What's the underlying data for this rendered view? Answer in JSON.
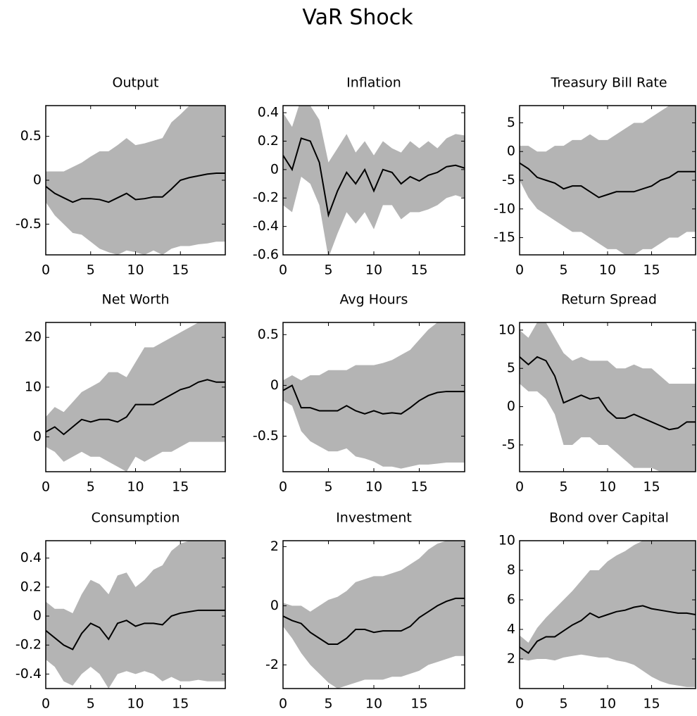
{
  "title": "VaR Shock",
  "chart_data": [
    {
      "type": "line",
      "title": "Output",
      "x": [
        0,
        1,
        2,
        3,
        4,
        5,
        6,
        7,
        8,
        9,
        10,
        11,
        12,
        13,
        14,
        15,
        16,
        17,
        18,
        19,
        20
      ],
      "values": [
        -0.07,
        -0.15,
        -0.2,
        -0.25,
        -0.21,
        -0.21,
        -0.22,
        -0.25,
        -0.2,
        -0.15,
        -0.22,
        -0.21,
        -0.19,
        -0.19,
        -0.1,
        0.0,
        0.03,
        0.05,
        0.07,
        0.08,
        0.08
      ],
      "band_upper": [
        0.1,
        0.1,
        0.1,
        0.15,
        0.2,
        0.27,
        0.33,
        0.33,
        0.4,
        0.48,
        0.4,
        0.42,
        0.45,
        0.48,
        0.66,
        0.75,
        0.85,
        0.85,
        0.85,
        0.85,
        0.85
      ],
      "band_lower": [
        -0.25,
        -0.4,
        -0.5,
        -0.6,
        -0.62,
        -0.7,
        -0.78,
        -0.82,
        -0.85,
        -0.8,
        -0.82,
        -0.85,
        -0.8,
        -0.85,
        -0.78,
        -0.75,
        -0.75,
        -0.73,
        -0.72,
        -0.7,
        -0.7
      ],
      "color": "#000000",
      "band_color": "#b4b4b4",
      "xlim": [
        0,
        20
      ],
      "xticks": [
        0,
        5,
        10,
        15
      ],
      "ylim": [
        -0.85,
        0.85
      ],
      "yticks": [
        -0.5,
        0,
        0.5
      ]
    },
    {
      "type": "line",
      "title": "Inflation",
      "x": [
        0,
        1,
        2,
        3,
        4,
        5,
        6,
        7,
        8,
        9,
        10,
        11,
        12,
        13,
        14,
        15,
        16,
        17,
        18,
        19,
        20
      ],
      "values": [
        0.1,
        0.0,
        0.22,
        0.2,
        0.05,
        -0.32,
        -0.15,
        -0.02,
        -0.1,
        0.0,
        -0.15,
        0.0,
        -0.02,
        -0.1,
        -0.05,
        -0.08,
        -0.04,
        -0.02,
        0.02,
        0.03,
        0.01
      ],
      "band_upper": [
        0.4,
        0.3,
        0.5,
        0.45,
        0.35,
        0.05,
        0.15,
        0.25,
        0.12,
        0.2,
        0.1,
        0.2,
        0.15,
        0.12,
        0.2,
        0.15,
        0.2,
        0.15,
        0.22,
        0.25,
        0.24
      ],
      "band_lower": [
        -0.25,
        -0.3,
        -0.05,
        -0.1,
        -0.25,
        -0.62,
        -0.45,
        -0.3,
        -0.38,
        -0.3,
        -0.42,
        -0.25,
        -0.25,
        -0.35,
        -0.3,
        -0.3,
        -0.28,
        -0.25,
        -0.2,
        -0.18,
        -0.2
      ],
      "color": "#000000",
      "band_color": "#b4b4b4",
      "xlim": [
        0,
        20
      ],
      "xticks": [
        0,
        5,
        10,
        15
      ],
      "ylim": [
        -0.6,
        0.45
      ],
      "yticks": [
        -0.6,
        -0.4,
        -0.2,
        0,
        0.2,
        0.4
      ]
    },
    {
      "type": "line",
      "title": "Treasury Bill Rate",
      "x": [
        0,
        1,
        2,
        3,
        4,
        5,
        6,
        7,
        8,
        9,
        10,
        11,
        12,
        13,
        14,
        15,
        16,
        17,
        18,
        19,
        20
      ],
      "values": [
        -2,
        -3,
        -4.5,
        -5,
        -5.5,
        -6.5,
        -6,
        -6,
        -7,
        -8,
        -7.5,
        -7,
        -7,
        -7,
        -6.5,
        -6,
        -5,
        -4.5,
        -3.5,
        -3.5,
        -3.5
      ],
      "band_upper": [
        1,
        1,
        0,
        0,
        1,
        1,
        2,
        2,
        3,
        2,
        2,
        3,
        4,
        5,
        5,
        6,
        7,
        8,
        8,
        8,
        8
      ],
      "band_lower": [
        -5,
        -8,
        -10,
        -11,
        -12,
        -13,
        -14,
        -14,
        -15,
        -16,
        -17,
        -17,
        -18,
        -18,
        -17,
        -17,
        -16,
        -15,
        -15,
        -14,
        -14
      ],
      "color": "#000000",
      "band_color": "#b4b4b4",
      "xlim": [
        0,
        20
      ],
      "xticks": [
        0,
        5,
        10,
        15
      ],
      "ylim": [
        -18,
        8
      ],
      "yticks": [
        -15,
        -10,
        -5,
        0,
        5
      ]
    },
    {
      "type": "line",
      "title": "Net Worth",
      "x": [
        0,
        1,
        2,
        3,
        4,
        5,
        6,
        7,
        8,
        9,
        10,
        11,
        12,
        13,
        14,
        15,
        16,
        17,
        18,
        19,
        20
      ],
      "values": [
        1,
        2,
        0.5,
        2,
        3.5,
        3,
        3.5,
        3.5,
        3,
        4,
        6.5,
        6.5,
        6.5,
        7.5,
        8.5,
        9.5,
        10,
        11,
        11.5,
        11,
        11
      ],
      "band_upper": [
        4,
        6,
        5,
        7,
        9,
        10,
        11,
        13,
        13,
        12,
        15,
        18,
        18,
        19,
        20,
        21,
        22,
        23,
        23,
        23,
        23
      ],
      "band_lower": [
        -2,
        -3,
        -5,
        -4,
        -3,
        -4,
        -4,
        -5,
        -6,
        -7,
        -4,
        -5,
        -4,
        -3,
        -3,
        -2,
        -1,
        -1,
        -1,
        -1,
        -1
      ],
      "color": "#000000",
      "band_color": "#b4b4b4",
      "xlim": [
        0,
        20
      ],
      "xticks": [
        0,
        5,
        10,
        15
      ],
      "ylim": [
        -7,
        23
      ],
      "yticks": [
        0,
        10,
        20
      ]
    },
    {
      "type": "line",
      "title": "Avg Hours",
      "x": [
        0,
        1,
        2,
        3,
        4,
        5,
        6,
        7,
        8,
        9,
        10,
        11,
        12,
        13,
        14,
        15,
        16,
        17,
        18,
        19,
        20
      ],
      "values": [
        -0.05,
        0.0,
        -0.22,
        -0.22,
        -0.25,
        -0.25,
        -0.25,
        -0.2,
        -0.25,
        -0.28,
        -0.25,
        -0.28,
        -0.27,
        -0.28,
        -0.22,
        -0.15,
        -0.1,
        -0.07,
        -0.06,
        -0.06,
        -0.06
      ],
      "band_upper": [
        0.05,
        0.1,
        0.05,
        0.1,
        0.1,
        0.15,
        0.15,
        0.15,
        0.2,
        0.2,
        0.2,
        0.22,
        0.25,
        0.3,
        0.35,
        0.45,
        0.55,
        0.62,
        0.62,
        0.62,
        0.62
      ],
      "band_lower": [
        -0.15,
        -0.2,
        -0.45,
        -0.55,
        -0.6,
        -0.65,
        -0.65,
        -0.62,
        -0.7,
        -0.72,
        -0.75,
        -0.8,
        -0.8,
        -0.82,
        -0.8,
        -0.78,
        -0.78,
        -0.77,
        -0.76,
        -0.76,
        -0.76
      ],
      "color": "#000000",
      "band_color": "#b4b4b4",
      "xlim": [
        0,
        20
      ],
      "xticks": [
        0,
        5,
        10,
        15
      ],
      "ylim": [
        -0.85,
        0.62
      ],
      "yticks": [
        -0.5,
        0,
        0.5
      ]
    },
    {
      "type": "line",
      "title": "Return Spread",
      "x": [
        0,
        1,
        2,
        3,
        4,
        5,
        6,
        7,
        8,
        9,
        10,
        11,
        12,
        13,
        14,
        15,
        16,
        17,
        18,
        19,
        20
      ],
      "values": [
        6.5,
        5.5,
        6.5,
        6,
        4,
        0.5,
        1,
        1.5,
        1,
        1.2,
        -0.5,
        -1.5,
        -1.5,
        -1,
        -1.5,
        -2,
        -2.5,
        -3,
        -2.8,
        -2,
        -2
      ],
      "band_upper": [
        10,
        9,
        11,
        11,
        9,
        7,
        6,
        6.5,
        6,
        6,
        6,
        5,
        5,
        5.5,
        5,
        5,
        4,
        3,
        3,
        3,
        3
      ],
      "band_lower": [
        3,
        2,
        2,
        1,
        -1,
        -5,
        -5,
        -4,
        -4,
        -5,
        -5,
        -6,
        -7,
        -8,
        -8,
        -8,
        -8.5,
        -8.5,
        -8.5,
        -8.5,
        -8.5
      ],
      "color": "#000000",
      "band_color": "#b4b4b4",
      "xlim": [
        0,
        20
      ],
      "xticks": [
        0,
        5,
        10,
        15
      ],
      "ylim": [
        -8.5,
        11
      ],
      "yticks": [
        -5,
        0,
        5,
        10
      ]
    },
    {
      "type": "line",
      "title": "Consumption",
      "x": [
        0,
        1,
        2,
        3,
        4,
        5,
        6,
        7,
        8,
        9,
        10,
        11,
        12,
        13,
        14,
        15,
        16,
        17,
        18,
        19,
        20
      ],
      "values": [
        -0.1,
        -0.15,
        -0.2,
        -0.23,
        -0.12,
        -0.05,
        -0.08,
        -0.16,
        -0.05,
        -0.03,
        -0.07,
        -0.05,
        -0.05,
        -0.06,
        0.0,
        0.02,
        0.03,
        0.04,
        0.04,
        0.04,
        0.04
      ],
      "band_upper": [
        0.1,
        0.05,
        0.05,
        0.02,
        0.15,
        0.25,
        0.22,
        0.15,
        0.28,
        0.3,
        0.2,
        0.25,
        0.32,
        0.35,
        0.45,
        0.5,
        0.52,
        0.52,
        0.52,
        0.52,
        0.52
      ],
      "band_lower": [
        -0.3,
        -0.35,
        -0.45,
        -0.48,
        -0.4,
        -0.35,
        -0.4,
        -0.5,
        -0.4,
        -0.38,
        -0.4,
        -0.38,
        -0.4,
        -0.45,
        -0.42,
        -0.45,
        -0.45,
        -0.44,
        -0.45,
        -0.45,
        -0.45
      ],
      "color": "#000000",
      "band_color": "#b4b4b4",
      "xlim": [
        0,
        20
      ],
      "xticks": [
        0,
        5,
        10,
        15
      ],
      "ylim": [
        -0.5,
        0.52
      ],
      "yticks": [
        -0.4,
        -0.2,
        0,
        0.2,
        0.4
      ]
    },
    {
      "type": "line",
      "title": "Investment",
      "x": [
        0,
        1,
        2,
        3,
        4,
        5,
        6,
        7,
        8,
        9,
        10,
        11,
        12,
        13,
        14,
        15,
        16,
        17,
        18,
        19,
        20
      ],
      "values": [
        -0.35,
        -0.5,
        -0.6,
        -0.9,
        -1.1,
        -1.3,
        -1.3,
        -1.1,
        -0.8,
        -0.8,
        -0.9,
        -0.85,
        -0.85,
        -0.85,
        -0.7,
        -0.4,
        -0.2,
        0.0,
        0.15,
        0.25,
        0.25
      ],
      "band_upper": [
        0.1,
        0.0,
        0.0,
        -0.2,
        0.0,
        0.2,
        0.3,
        0.5,
        0.8,
        0.9,
        1.0,
        1.0,
        1.1,
        1.2,
        1.4,
        1.6,
        1.9,
        2.1,
        2.2,
        2.2,
        2.2
      ],
      "band_lower": [
        -0.7,
        -1.1,
        -1.6,
        -2.0,
        -2.3,
        -2.6,
        -2.8,
        -2.7,
        -2.6,
        -2.5,
        -2.5,
        -2.5,
        -2.4,
        -2.4,
        -2.3,
        -2.2,
        -2.0,
        -1.9,
        -1.8,
        -1.7,
        -1.7
      ],
      "color": "#000000",
      "band_color": "#b4b4b4",
      "xlim": [
        0,
        20
      ],
      "xticks": [
        0,
        5,
        10,
        15
      ],
      "ylim": [
        -2.8,
        2.2
      ],
      "yticks": [
        -2,
        0,
        2
      ]
    },
    {
      "type": "line",
      "title": "Bond over Capital",
      "x": [
        0,
        1,
        2,
        3,
        4,
        5,
        6,
        7,
        8,
        9,
        10,
        11,
        12,
        13,
        14,
        15,
        16,
        17,
        18,
        19,
        20
      ],
      "values": [
        2.8,
        2.4,
        3.2,
        3.5,
        3.5,
        3.9,
        4.3,
        4.6,
        5.1,
        4.8,
        5.0,
        5.2,
        5.3,
        5.5,
        5.6,
        5.4,
        5.3,
        5.2,
        5.1,
        5.1,
        5.0
      ],
      "band_upper": [
        3.6,
        3.1,
        4.1,
        4.8,
        5.4,
        6.0,
        6.6,
        7.3,
        8.0,
        8.0,
        8.6,
        9.0,
        9.3,
        9.7,
        10,
        10,
        10,
        10,
        10,
        10,
        10
      ],
      "band_lower": [
        2.0,
        1.9,
        2.0,
        2.0,
        1.9,
        2.1,
        2.2,
        2.3,
        2.2,
        2.1,
        2.1,
        1.9,
        1.8,
        1.6,
        1.2,
        0.8,
        0.5,
        0.3,
        0.2,
        0.1,
        0.1
      ],
      "color": "#000000",
      "band_color": "#b4b4b4",
      "xlim": [
        0,
        20
      ],
      "xticks": [
        0,
        5,
        10,
        15
      ],
      "ylim": [
        0,
        10
      ],
      "yticks": [
        2,
        4,
        6,
        8,
        10
      ]
    }
  ]
}
